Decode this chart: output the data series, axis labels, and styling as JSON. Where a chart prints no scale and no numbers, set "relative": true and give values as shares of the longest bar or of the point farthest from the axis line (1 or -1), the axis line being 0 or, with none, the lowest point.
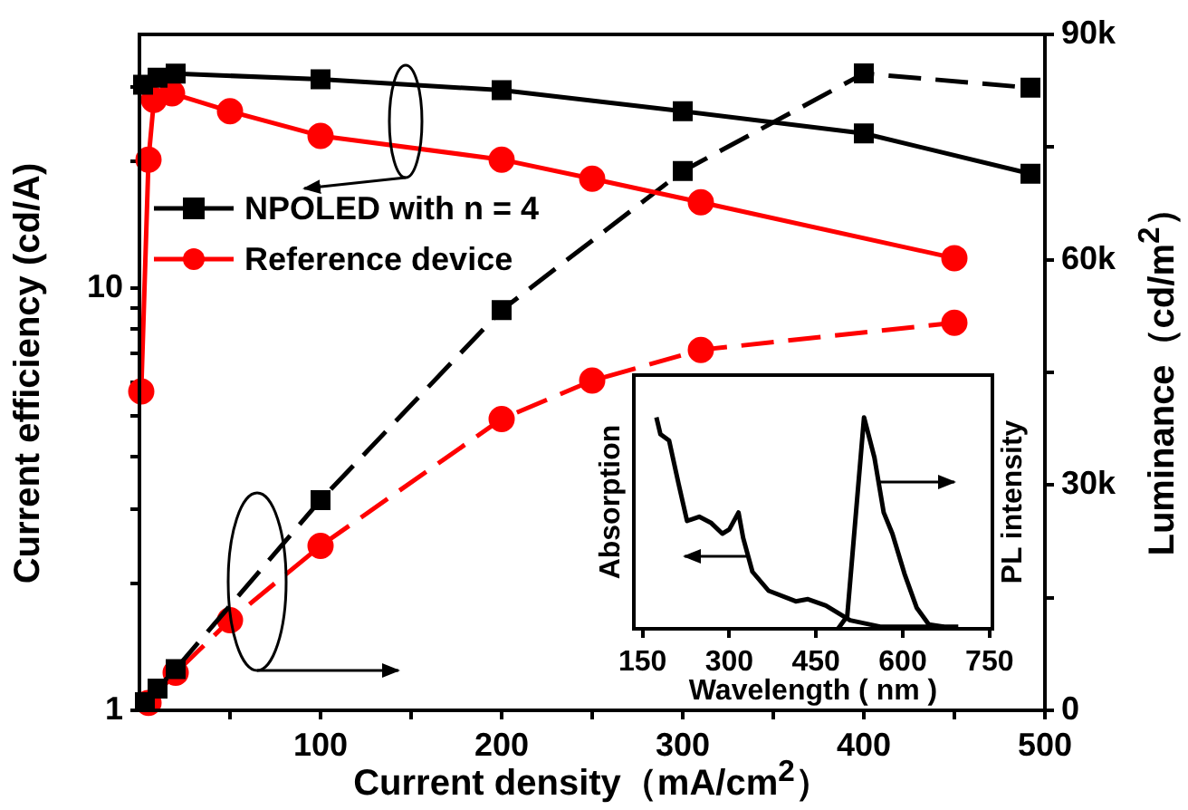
{
  "chart_data": [
    {
      "type": "line",
      "xlabel": "Current density（mA/cm$^{2}$）",
      "ylabel": "Current efficiency (cd/A)",
      "y2label": "Luminance（cd/m$^{2}$）",
      "xlim": [
        0,
        500
      ],
      "xticks": [
        {
          "value": 50,
          "label": null
        },
        100,
        {
          "value": 150,
          "label": null
        },
        200,
        {
          "value": 250,
          "label": null
        },
        300,
        {
          "value": 350,
          "label": null
        },
        400,
        {
          "value": 450,
          "label": null
        },
        500
      ],
      "ylim": [
        1,
        40
      ],
      "yticks": [
        1,
        {
          "value": 2,
          "label": null
        },
        {
          "value": 3,
          "label": null
        },
        {
          "value": 4,
          "label": null
        },
        {
          "value": 5,
          "label": null
        },
        {
          "value": 6,
          "label": null
        },
        {
          "value": 7,
          "label": null
        },
        {
          "value": 8,
          "label": null
        },
        {
          "value": 9,
          "label": null
        },
        10,
        {
          "value": 20,
          "label": null
        },
        {
          "value": 30,
          "label": null
        }
      ],
      "y2lim": [
        0,
        90000
      ],
      "y2ticks": [
        0,
        {
          "value": 15000,
          "label": null
        },
        {
          "value": 30000,
          "label": "30k"
        },
        {
          "value": 45000,
          "label": null
        },
        {
          "value": 60000,
          "label": "60k"
        },
        {
          "value": 75000,
          "label": null
        },
        {
          "value": 90000,
          "label": "90k"
        }
      ],
      "log": "y",
      "grid": false,
      "legend": "top left",
      "series": [
        {
          "name": "NPOLED with n = 4",
          "color": "#000000",
          "marker": "square",
          "line_style": "solid",
          "axis": "y",
          "x": [
            2,
            10,
            20,
            100,
            200,
            300,
            400,
            492
          ],
          "values": [
            30.4,
            31.6,
            32.3,
            31.3,
            29.5,
            26.3,
            23.3,
            18.7
          ]
        },
        {
          "name": "Reference device",
          "color": "#ff0000",
          "marker": "circle",
          "line_style": "solid",
          "axis": "y",
          "x": [
            1,
            5,
            8,
            18,
            50,
            100,
            200,
            250,
            310,
            450
          ],
          "values": [
            5.7,
            20.2,
            28,
            29,
            26.3,
            23,
            20.2,
            18.2,
            16,
            11.8
          ]
        },
        {
          "color": "#000000",
          "marker": "square",
          "line_style": "dashed",
          "axis": "y2",
          "x": [
            3,
            10,
            20,
            100,
            200,
            300,
            400,
            492
          ],
          "values": [
            1100,
            2900,
            5500,
            28000,
            53300,
            71800,
            84800,
            82900
          ]
        },
        {
          "color": "#ff0000",
          "marker": "circle",
          "line_style": "dashed",
          "axis": "y2",
          "x": [
            5,
            20,
            50,
            100,
            200,
            250,
            310,
            450
          ],
          "values": [
            1000,
            5000,
            12000,
            21900,
            38800,
            43900,
            48000,
            51600
          ]
        }
      ]
    },
    {
      "type": "line",
      "xlabel": "Wavelength ( nm )",
      "ylabel": "Absorption",
      "y2label": "PL intensity",
      "relative": true,
      "xlim": [
        135,
        755
      ],
      "xticks": [
        150,
        300,
        450,
        600,
        750
      ],
      "grid": false,
      "series": [
        {
          "color": "#000000",
          "marker": "none",
          "line_style": "solid",
          "axis": "y",
          "x": [
            174,
            181,
            196,
            212,
            227,
            248,
            269,
            288,
            300,
            316,
            324,
            340,
            368,
            415,
            436,
            467,
            509,
            561,
            696
          ],
          "values": [
            1,
            0.92,
            0.89,
            0.69,
            0.51,
            0.53,
            0.5,
            0.45,
            0.47,
            0.55,
            0.43,
            0.27,
            0.18,
            0.13,
            0.14,
            0.11,
            0.04,
            0.01,
            0.01
          ]
        },
        {
          "color": "#000000",
          "marker": "none",
          "line_style": "solid",
          "axis": "y2",
          "x": [
            488,
            504,
            533,
            551,
            567,
            582,
            603,
            624,
            645,
            671
          ],
          "values": [
            0,
            0.06,
            1,
            0.81,
            0.55,
            0.45,
            0.26,
            0.1,
            0.02,
            0.01
          ]
        }
      ]
    }
  ]
}
